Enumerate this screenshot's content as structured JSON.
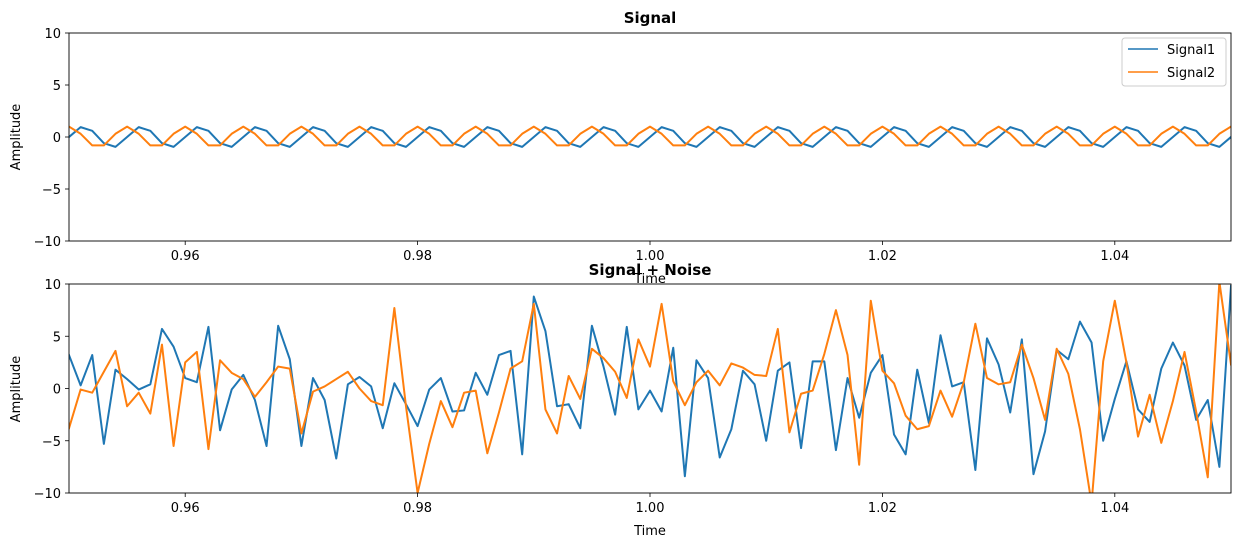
{
  "chart_data": [
    {
      "type": "line",
      "title": "Signal",
      "xlabel": "Time",
      "ylabel": "Amplitude",
      "xlim": [
        0.95,
        1.05
      ],
      "ylim": [
        -10,
        10
      ],
      "xticks": [
        "0.96",
        "0.98",
        "1.00",
        "1.02",
        "1.04"
      ],
      "xtick_values": [
        0.96,
        0.98,
        1.0,
        1.02,
        1.04
      ],
      "yticks": [
        "−10",
        "−5",
        "0",
        "5",
        "10"
      ],
      "ytick_values": [
        -10,
        -5,
        0,
        5,
        10
      ],
      "grid": false,
      "legend": "top-right",
      "x": [
        0.95,
        0.951,
        0.952,
        0.953,
        0.954,
        0.955,
        0.956,
        0.957,
        0.958,
        0.959,
        0.96,
        0.961,
        0.962,
        0.963,
        0.964,
        0.965,
        0.966,
        0.967,
        0.968,
        0.969,
        0.97,
        0.971,
        0.972,
        0.973,
        0.974,
        0.975,
        0.976,
        0.977,
        0.978,
        0.979,
        0.98,
        0.981,
        0.982,
        0.983,
        0.984,
        0.985,
        0.986,
        0.987,
        0.988,
        0.989,
        0.99,
        0.991,
        0.992,
        0.993,
        0.994,
        0.995,
        0.996,
        0.997,
        0.998,
        0.999,
        1.0,
        1.001,
        1.002,
        1.003,
        1.004,
        1.005,
        1.006,
        1.007,
        1.008,
        1.009,
        1.01,
        1.011,
        1.012,
        1.013,
        1.014,
        1.015,
        1.016,
        1.017,
        1.018,
        1.019,
        1.02,
        1.021,
        1.022,
        1.023,
        1.024,
        1.025,
        1.026,
        1.027,
        1.028,
        1.029,
        1.03,
        1.031,
        1.032,
        1.033,
        1.034,
        1.035,
        1.036,
        1.037,
        1.038,
        1.039,
        1.04,
        1.041,
        1.042,
        1.043,
        1.044,
        1.045,
        1.046,
        1.047,
        1.048,
        1.049,
        1.05
      ],
      "series": [
        {
          "name": "Signal1",
          "color": "#1f77b4",
          "values": [
            0,
            0.95,
            0.59,
            -0.59,
            -0.95,
            0,
            0.95,
            0.59,
            -0.59,
            -0.95,
            0,
            0.95,
            0.59,
            -0.59,
            -0.95,
            0,
            0.95,
            0.59,
            -0.59,
            -0.95,
            0,
            0.95,
            0.59,
            -0.59,
            -0.95,
            0,
            0.95,
            0.59,
            -0.59,
            -0.95,
            0,
            0.95,
            0.59,
            -0.59,
            -0.95,
            0,
            0.95,
            0.59,
            -0.59,
            -0.95,
            0,
            0.95,
            0.59,
            -0.59,
            -0.95,
            0,
            0.95,
            0.59,
            -0.59,
            -0.95,
            0,
            0.95,
            0.59,
            -0.59,
            -0.95,
            0,
            0.95,
            0.59,
            -0.59,
            -0.95,
            0,
            0.95,
            0.59,
            -0.59,
            -0.95,
            0,
            0.95,
            0.59,
            -0.59,
            -0.95,
            0,
            0.95,
            0.59,
            -0.59,
            -0.95,
            0,
            0.95,
            0.59,
            -0.59,
            -0.95,
            0,
            0.95,
            0.59,
            -0.59,
            -0.95,
            0,
            0.95,
            0.59,
            -0.59,
            -0.95,
            0,
            0.95,
            0.59,
            -0.59,
            -0.95,
            0,
            0.95,
            0.59,
            -0.59,
            -0.95,
            0
          ]
        },
        {
          "name": "Signal2",
          "color": "#ff7f0e",
          "values": [
            1,
            0.31,
            -0.81,
            -0.81,
            0.31,
            1,
            0.31,
            -0.81,
            -0.81,
            0.31,
            1,
            0.31,
            -0.81,
            -0.81,
            0.31,
            1,
            0.31,
            -0.81,
            -0.81,
            0.31,
            1,
            0.31,
            -0.81,
            -0.81,
            0.31,
            1,
            0.31,
            -0.81,
            -0.81,
            0.31,
            1,
            0.31,
            -0.81,
            -0.81,
            0.31,
            1,
            0.31,
            -0.81,
            -0.81,
            0.31,
            1,
            0.31,
            -0.81,
            -0.81,
            0.31,
            1,
            0.31,
            -0.81,
            -0.81,
            0.31,
            1,
            0.31,
            -0.81,
            -0.81,
            0.31,
            1,
            0.31,
            -0.81,
            -0.81,
            0.31,
            1,
            0.31,
            -0.81,
            -0.81,
            0.31,
            1,
            0.31,
            -0.81,
            -0.81,
            0.31,
            1,
            0.31,
            -0.81,
            -0.81,
            0.31,
            1,
            0.31,
            -0.81,
            -0.81,
            0.31,
            1,
            0.31,
            -0.81,
            -0.81,
            0.31,
            1,
            0.31,
            -0.81,
            -0.81,
            0.31,
            1,
            0.31,
            -0.81,
            -0.81,
            0.31,
            1,
            0.31,
            -0.81,
            -0.81,
            0.31,
            1
          ]
        }
      ]
    },
    {
      "type": "line",
      "title": "Signal + Noise",
      "xlabel": "Time",
      "ylabel": "Amplitude",
      "xlim": [
        0.95,
        1.05
      ],
      "ylim": [
        -10,
        10
      ],
      "xticks": [
        "0.96",
        "0.98",
        "1.00",
        "1.02",
        "1.04"
      ],
      "xtick_values": [
        0.96,
        0.98,
        1.0,
        1.02,
        1.04
      ],
      "yticks": [
        "−10",
        "−5",
        "0",
        "5",
        "10"
      ],
      "ytick_values": [
        -10,
        -5,
        0,
        5,
        10
      ],
      "grid": false,
      "x": [
        0.95,
        0.951,
        0.952,
        0.953,
        0.954,
        0.955,
        0.956,
        0.957,
        0.958,
        0.959,
        0.96,
        0.961,
        0.962,
        0.963,
        0.964,
        0.965,
        0.966,
        0.967,
        0.968,
        0.969,
        0.97,
        0.971,
        0.972,
        0.973,
        0.974,
        0.975,
        0.976,
        0.977,
        0.978,
        0.979,
        0.98,
        0.981,
        0.982,
        0.983,
        0.984,
        0.985,
        0.986,
        0.987,
        0.988,
        0.989,
        0.99,
        0.991,
        0.992,
        0.993,
        0.994,
        0.995,
        0.996,
        0.997,
        0.998,
        0.999,
        1.0,
        1.001,
        1.002,
        1.003,
        1.004,
        1.005,
        1.006,
        1.007,
        1.008,
        1.009,
        1.01,
        1.011,
        1.012,
        1.013,
        1.014,
        1.015,
        1.016,
        1.017,
        1.018,
        1.019,
        1.02,
        1.021,
        1.022,
        1.023,
        1.024,
        1.025,
        1.026,
        1.027,
        1.028,
        1.029,
        1.03,
        1.031,
        1.032,
        1.033,
        1.034,
        1.035,
        1.036,
        1.037,
        1.038,
        1.039,
        1.04,
        1.041,
        1.042,
        1.043,
        1.044,
        1.045,
        1.046,
        1.047,
        1.048,
        1.049,
        1.05
      ],
      "series": [
        {
          "name": "Signal1",
          "color": "#1f77b4",
          "values": [
            3.2,
            0.3,
            3.2,
            -5.3,
            1.8,
            0.9,
            -0.1,
            0.4,
            5.7,
            4.0,
            1.0,
            0.6,
            5.9,
            -4.0,
            -0.1,
            1.3,
            -1.1,
            -5.5,
            6.0,
            2.8,
            -5.5,
            1.0,
            -1.1,
            -6.7,
            0.4,
            1.1,
            0.2,
            -3.8,
            0.5,
            -1.5,
            -3.6,
            -0.1,
            1.0,
            -2.2,
            -2.1,
            1.5,
            -0.6,
            3.2,
            3.6,
            -6.3,
            8.8,
            5.5,
            -1.7,
            -1.5,
            -3.8,
            6.0,
            2.1,
            -2.5,
            5.9,
            -2.0,
            -0.2,
            -2.2,
            3.9,
            -8.4,
            2.7,
            1.0,
            -6.6,
            -3.9,
            1.7,
            0.4,
            -5.0,
            1.7,
            2.5,
            -5.7,
            2.6,
            2.6,
            -5.9,
            1.0,
            -2.8,
            1.5,
            3.2,
            -4.4,
            -6.3,
            1.8,
            -3.3,
            5.1,
            0.2,
            0.6,
            -7.8,
            4.8,
            2.3,
            -2.3,
            4.7,
            -8.2,
            -4.1,
            3.7,
            2.8,
            6.4,
            4.4,
            -5.0,
            -1.0,
            2.6,
            -2.0,
            -3.2,
            1.9,
            4.4,
            2.2,
            -3.0,
            -1.1,
            -7.5,
            9.8
          ]
        },
        {
          "name": "Signal2",
          "color": "#ff7f0e",
          "values": [
            -3.8,
            -0.1,
            -0.4,
            1.6,
            3.6,
            -1.7,
            -0.4,
            -2.4,
            4.2,
            -5.5,
            2.5,
            3.5,
            -5.8,
            2.7,
            1.5,
            0.9,
            -0.8,
            0.6,
            2.1,
            1.9,
            -4.3,
            -0.3,
            0.2,
            0.9,
            1.6,
            0.0,
            -1.2,
            -1.6,
            7.7,
            -1.7,
            -10.0,
            -5.3,
            -1.2,
            -3.7,
            -0.4,
            -0.2,
            -6.2,
            -2.3,
            1.9,
            2.6,
            8.1,
            -2.0,
            -4.3,
            1.2,
            -1.0,
            3.8,
            2.9,
            1.6,
            -0.9,
            4.7,
            2.1,
            8.1,
            0.7,
            -1.6,
            0.6,
            1.7,
            0.3,
            2.4,
            2.0,
            1.3,
            1.2,
            5.7,
            -4.2,
            -0.5,
            -0.2,
            3.3,
            7.5,
            3.2,
            -7.3,
            8.4,
            1.7,
            0.5,
            -2.6,
            -3.9,
            -3.6,
            -0.2,
            -2.7,
            0.6,
            6.2,
            1.0,
            0.4,
            0.6,
            4.2,
            1.0,
            -3.0,
            3.8,
            1.4,
            -3.9,
            -11.0,
            2.6,
            8.4,
            2.5,
            -4.6,
            -0.6,
            -5.2,
            -1.2,
            3.5,
            -2.2,
            -8.5,
            10.2,
            2.3
          ]
        }
      ]
    }
  ]
}
